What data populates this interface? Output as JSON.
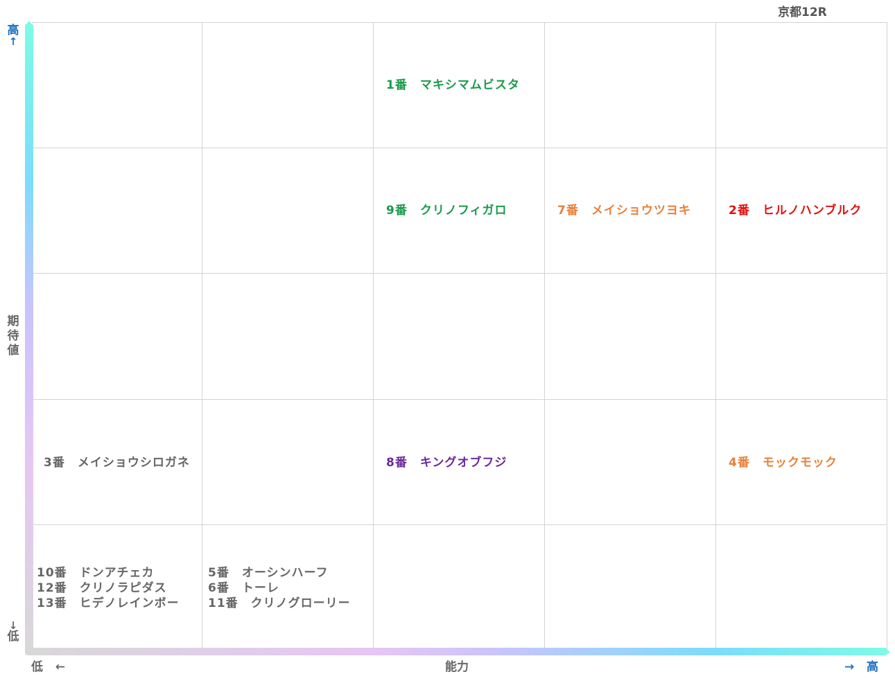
{
  "race_title": "京都12R",
  "chart_data": {
    "type": "scatter",
    "title": "京都12R",
    "xlabel": "能力",
    "ylabel": "期待値",
    "x_low": "低",
    "x_high": "高",
    "y_low": "低",
    "y_high": "高",
    "x_arrow_low": "←",
    "x_arrow_high": "→",
    "y_arrow_low": "↓",
    "y_arrow_high": "↑",
    "xlim": [
      1,
      5
    ],
    "ylim": [
      1,
      5
    ],
    "groups": [
      {
        "x": 3,
        "y": 5,
        "color": "#1a9a4a",
        "horses": [
          "1番　マキシマムビスタ"
        ]
      },
      {
        "x": 3,
        "y": 4,
        "color": "#1a9a4a",
        "horses": [
          "9番　クリノフィガロ"
        ]
      },
      {
        "x": 4,
        "y": 4,
        "color": "#e8803a",
        "horses": [
          "7番　メイショウツヨキ"
        ]
      },
      {
        "x": 5,
        "y": 4,
        "color": "#e01010",
        "horses": [
          "2番　ヒルノハンブルク"
        ]
      },
      {
        "x": 1,
        "y": 2,
        "color": "#666666",
        "horses": [
          "3番　メイショウシロガネ"
        ]
      },
      {
        "x": 3,
        "y": 2,
        "color": "#6a2a9a",
        "horses": [
          "8番　キングオブフジ"
        ]
      },
      {
        "x": 5,
        "y": 2,
        "color": "#e8803a",
        "horses": [
          "4番　モックモック"
        ]
      },
      {
        "x": 1,
        "y": 1,
        "color": "#666666",
        "horses": [
          "10番　ドンアチェカ",
          "12番　クリノラピダス",
          "13番　ヒデノレインボー"
        ]
      },
      {
        "x": 2,
        "y": 1,
        "color": "#666666",
        "horses": [
          "5番　オーシンハーフ",
          "6番　トーレ",
          "11番　クリノグローリー"
        ]
      }
    ]
  }
}
